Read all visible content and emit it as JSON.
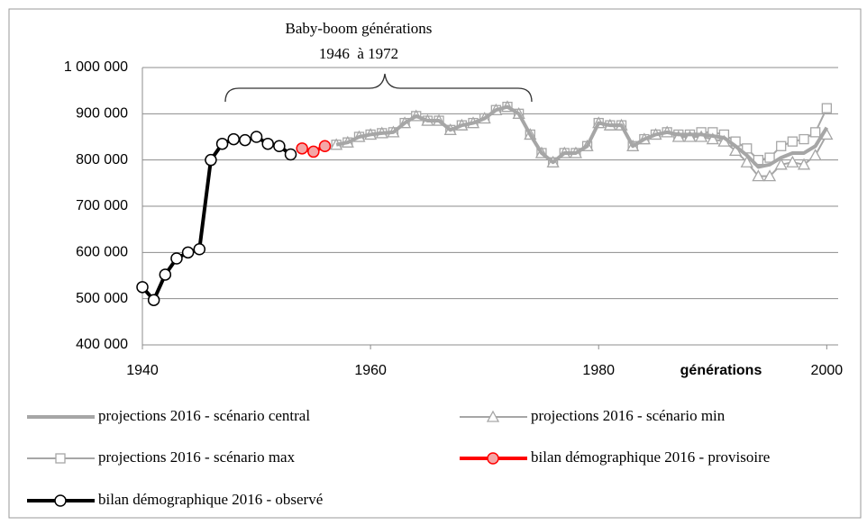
{
  "chart_data": {
    "type": "line",
    "title": "Baby-boom générations",
    "subtitle": "1946  à 1972",
    "x_label": "générations",
    "xlim": [
      1940,
      2001
    ],
    "xticks": [
      1940,
      1960,
      1980,
      2000
    ],
    "ylim": [
      400000,
      1000000
    ],
    "yticks": [
      {
        "value": 400000,
        "label": "400 000"
      },
      {
        "value": 500000,
        "label": "500 000"
      },
      {
        "value": 600000,
        "label": "600 000"
      },
      {
        "value": 700000,
        "label": "700 000"
      },
      {
        "value": 800000,
        "label": "800 000"
      },
      {
        "value": 900000,
        "label": "900 000"
      },
      {
        "value": 1000000,
        "label": "1 000 000"
      }
    ],
    "grid": true,
    "series": [
      {
        "name": "projections 2016 - scénario max",
        "color": "#a6a6a6",
        "marker": "square",
        "width": 2,
        "x": [
          1957,
          1958,
          1959,
          1960,
          1961,
          1962,
          1963,
          1964,
          1965,
          1966,
          1967,
          1968,
          1969,
          1970,
          1971,
          1972,
          1973,
          1974,
          1975,
          1976,
          1977,
          1978,
          1979,
          1980,
          1981,
          1982,
          1983,
          1984,
          1985,
          1986,
          1987,
          1988,
          1989,
          1990,
          1991,
          1992,
          1993,
          1994,
          1995,
          1996,
          1997,
          1998,
          1999,
          2000
        ],
        "values": [
          833000,
          838000,
          850000,
          855000,
          858000,
          860000,
          880000,
          895000,
          885000,
          885000,
          865000,
          875000,
          880000,
          890000,
          908000,
          915000,
          900000,
          855000,
          815000,
          795000,
          815000,
          815000,
          830000,
          880000,
          875000,
          875000,
          830000,
          845000,
          855000,
          860000,
          855000,
          855000,
          860000,
          860000,
          855000,
          840000,
          825000,
          800000,
          805000,
          830000,
          840000,
          845000,
          860000,
          912000
        ]
      },
      {
        "name": "projections 2016 - scénario min",
        "color": "#a6a6a6",
        "marker": "triangle",
        "width": 2,
        "x": [
          1957,
          1958,
          1959,
          1960,
          1961,
          1962,
          1963,
          1964,
          1965,
          1966,
          1967,
          1968,
          1969,
          1970,
          1971,
          1972,
          1973,
          1974,
          1975,
          1976,
          1977,
          1978,
          1979,
          1980,
          1981,
          1982,
          1983,
          1984,
          1985,
          1986,
          1987,
          1988,
          1989,
          1990,
          1991,
          1992,
          1993,
          1994,
          1995,
          1996,
          1997,
          1998,
          1999,
          2000
        ],
        "values": [
          833000,
          838000,
          850000,
          855000,
          858000,
          860000,
          880000,
          895000,
          885000,
          885000,
          865000,
          875000,
          880000,
          890000,
          908000,
          915000,
          900000,
          855000,
          815000,
          795000,
          815000,
          815000,
          830000,
          880000,
          875000,
          875000,
          830000,
          845000,
          855000,
          860000,
          850000,
          850000,
          850000,
          845000,
          840000,
          820000,
          795000,
          765000,
          765000,
          790000,
          795000,
          790000,
          810000,
          855000
        ]
      },
      {
        "name": "projections 2016 - scénario central",
        "color": "#a6a6a6",
        "marker": "none",
        "width": 4,
        "x": [
          1957,
          1958,
          1959,
          1960,
          1961,
          1962,
          1963,
          1964,
          1965,
          1966,
          1967,
          1968,
          1969,
          1970,
          1971,
          1972,
          1973,
          1974,
          1975,
          1976,
          1977,
          1978,
          1979,
          1980,
          1981,
          1982,
          1983,
          1984,
          1985,
          1986,
          1987,
          1988,
          1989,
          1990,
          1991,
          1992,
          1993,
          1994,
          1995,
          1996,
          1997,
          1998,
          1999,
          2000
        ],
        "values": [
          833000,
          838000,
          850000,
          855000,
          858000,
          860000,
          880000,
          895000,
          885000,
          885000,
          865000,
          875000,
          880000,
          890000,
          908000,
          915000,
          900000,
          855000,
          815000,
          795000,
          815000,
          815000,
          830000,
          880000,
          875000,
          875000,
          830000,
          845000,
          855000,
          860000,
          855000,
          855000,
          855000,
          852000,
          848000,
          830000,
          810000,
          785000,
          790000,
          805000,
          815000,
          815000,
          830000,
          870000
        ]
      },
      {
        "name": "bilan démographique 2016 - observé",
        "color": "#000000",
        "marker": "circle",
        "marker_fill": "#ffffff",
        "width": 4,
        "x": [
          1940,
          1941,
          1942,
          1943,
          1944,
          1945,
          1946,
          1947,
          1948,
          1949,
          1950,
          1951,
          1952,
          1953
        ],
        "values": [
          525000,
          497000,
          552000,
          587000,
          600000,
          607000,
          800000,
          835000,
          845000,
          843000,
          850000,
          835000,
          830000,
          812000
        ]
      },
      {
        "name": "bilan démographique 2016 - provisoire",
        "color": "#ff0000",
        "marker": "circle",
        "marker_fill": "#f4a6a6",
        "width": 4,
        "x": [
          1954,
          1955,
          1956
        ],
        "values": [
          825000,
          818000,
          830000
        ]
      }
    ]
  }
}
